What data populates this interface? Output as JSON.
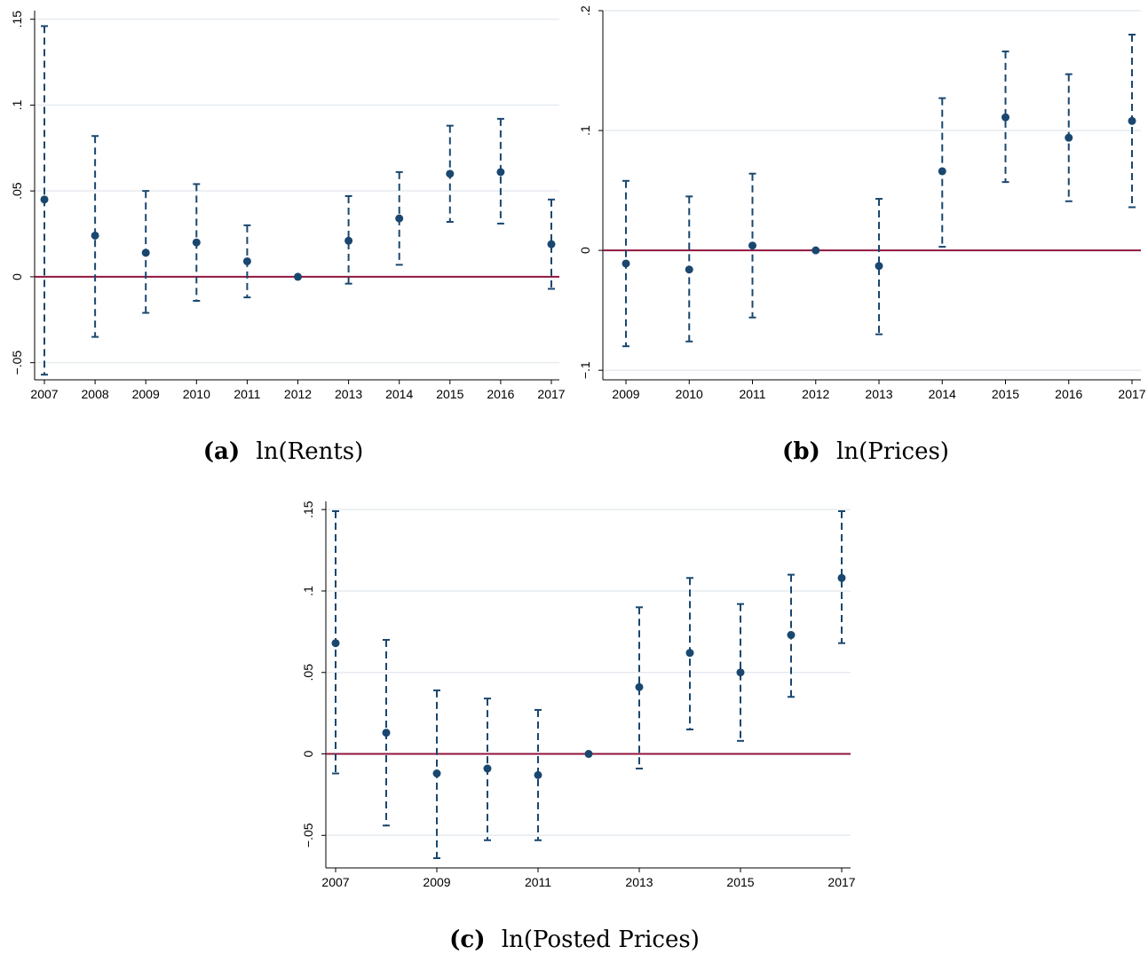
{
  "colors": {
    "marker": "#1a476f",
    "zero_line": "#90153f",
    "grid": "#e6ebef"
  },
  "chart_data": [
    {
      "id": "rents",
      "type": "scatter",
      "caption_letter": "(a)",
      "caption_text": "ln(Rents)",
      "title": "",
      "xlabel": "",
      "ylabel": "",
      "x": [
        2007,
        2008,
        2009,
        2010,
        2011,
        2012,
        2013,
        2014,
        2015,
        2016,
        2017
      ],
      "y": [
        0.045,
        0.024,
        0.014,
        0.02,
        0.009,
        0.0,
        0.021,
        0.034,
        0.06,
        0.061,
        0.019
      ],
      "ci_low": [
        -0.057,
        -0.035,
        -0.021,
        -0.014,
        -0.012,
        0.0,
        -0.004,
        0.007,
        0.032,
        0.031,
        -0.007
      ],
      "ci_high": [
        0.146,
        0.082,
        0.05,
        0.054,
        0.03,
        0.0,
        0.047,
        0.061,
        0.088,
        0.092,
        0.045
      ],
      "xticks": [
        2007,
        2008,
        2009,
        2010,
        2011,
        2012,
        2013,
        2014,
        2015,
        2016,
        2017
      ],
      "xtick_labels": [
        "2007",
        "2008",
        "2009",
        "2010",
        "2011",
        "2012",
        "2013",
        "2014",
        "2015",
        "2016",
        "2017"
      ],
      "yticks": [
        -0.05,
        0,
        0.05,
        0.1,
        0.15
      ],
      "ytick_labels": [
        "-.05",
        "0",
        ".05",
        ".1",
        ".15"
      ],
      "xlim": [
        2007,
        2017
      ],
      "ylim": [
        -0.06,
        0.155
      ],
      "reference_line": 0,
      "grid": true
    },
    {
      "id": "prices",
      "type": "scatter",
      "caption_letter": "(b)",
      "caption_text": "ln(Prices)",
      "title": "",
      "xlabel": "",
      "ylabel": "",
      "x": [
        2009,
        2010,
        2011,
        2012,
        2013,
        2014,
        2015,
        2016,
        2017
      ],
      "y": [
        -0.011,
        -0.016,
        0.004,
        0.0,
        -0.013,
        0.066,
        0.111,
        0.094,
        0.108
      ],
      "ci_low": [
        -0.08,
        -0.076,
        -0.056,
        0.0,
        -0.07,
        0.003,
        0.057,
        0.041,
        0.036
      ],
      "ci_high": [
        0.058,
        0.045,
        0.064,
        0.0,
        0.043,
        0.127,
        0.166,
        0.147,
        0.18
      ],
      "xticks": [
        2009,
        2010,
        2011,
        2012,
        2013,
        2014,
        2015,
        2016,
        2017
      ],
      "xtick_labels": [
        "2009",
        "2010",
        "2011",
        "2012",
        "2013",
        "2014",
        "2015",
        "2016",
        "2017"
      ],
      "yticks": [
        -0.1,
        0,
        0.1,
        0.2
      ],
      "ytick_labels": [
        "-.1",
        "0",
        ".1",
        ".2"
      ],
      "xlim": [
        2009,
        2017
      ],
      "ylim": [
        -0.108,
        0.2
      ],
      "reference_line": 0,
      "grid": true
    },
    {
      "id": "posted_prices",
      "type": "scatter",
      "caption_letter": "(c)",
      "caption_text": "ln(Posted Prices)",
      "title": "",
      "xlabel": "",
      "ylabel": "",
      "x": [
        2007,
        2008,
        2009,
        2010,
        2011,
        2012,
        2013,
        2014,
        2015,
        2016,
        2017
      ],
      "y": [
        0.068,
        0.013,
        -0.012,
        -0.009,
        -0.013,
        0.0,
        0.041,
        0.062,
        0.05,
        0.073,
        0.108
      ],
      "ci_low": [
        -0.012,
        -0.044,
        -0.064,
        -0.053,
        -0.053,
        0.0,
        -0.009,
        0.015,
        0.008,
        0.035,
        0.068
      ],
      "ci_high": [
        0.149,
        0.07,
        0.039,
        0.034,
        0.027,
        0.0,
        0.09,
        0.108,
        0.092,
        0.11,
        0.149
      ],
      "xticks": [
        2007,
        2009,
        2011,
        2013,
        2015,
        2017
      ],
      "xtick_labels": [
        "2007",
        "2009",
        "2011",
        "2013",
        "2015",
        "2017"
      ],
      "yticks": [
        -0.05,
        0,
        0.05,
        0.1,
        0.15
      ],
      "ytick_labels": [
        "-.05",
        "0",
        ".05",
        ".1",
        ".15"
      ],
      "xlim": [
        2007,
        2017
      ],
      "ylim": [
        -0.07,
        0.155
      ],
      "reference_line": 0,
      "grid": true
    }
  ]
}
